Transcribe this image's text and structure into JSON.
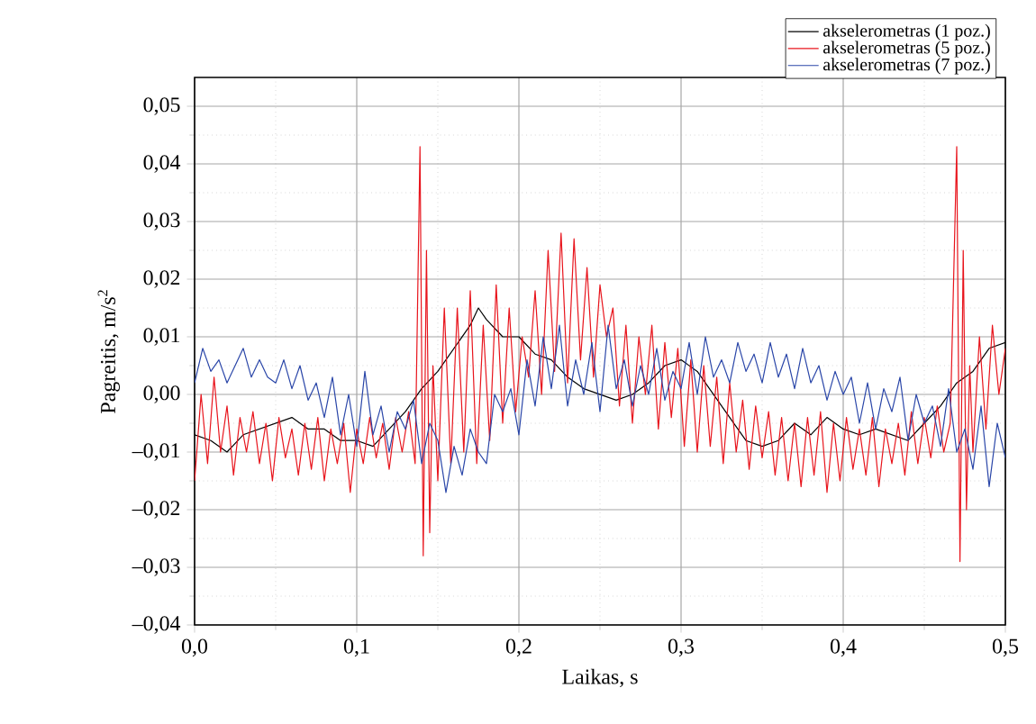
{
  "chart_data": {
    "type": "line",
    "xlabel": "Laikas, s",
    "ylabel": "Pagreitis, m/s$^{2}$",
    "xlim": [
      0,
      0.5
    ],
    "ylim": [
      -0.04,
      0.055
    ],
    "xticks": [
      {
        "value": 0,
        "label": "0,0"
      },
      {
        "value": 0.1,
        "label": "0,1"
      },
      {
        "value": 0.2,
        "label": "0,2"
      },
      {
        "value": 0.3,
        "label": "0,3"
      },
      {
        "value": 0.4,
        "label": "0,4"
      },
      {
        "value": 0.5,
        "label": "0,5"
      }
    ],
    "yticks": [
      {
        "value": -0.04,
        "label": "–0,04"
      },
      {
        "value": -0.03,
        "label": "–0,03"
      },
      {
        "value": -0.02,
        "label": "–0,02"
      },
      {
        "value": -0.01,
        "label": "–0,01"
      },
      {
        "value": 0,
        "label": "0,00"
      },
      {
        "value": 0.01,
        "label": "0,01"
      },
      {
        "value": 0.02,
        "label": "0,02"
      },
      {
        "value": 0.03,
        "label": "0,03"
      },
      {
        "value": 0.04,
        "label": "0,04"
      },
      {
        "value": 0.05,
        "label": "0,05"
      }
    ],
    "grid": true,
    "legend": "top right",
    "marker": "none",
    "line_style": "solid",
    "series": [
      {
        "name": "akselerometras (1 poz.)",
        "color": "#000000",
        "x": [
          0,
          0.01,
          0.02,
          0.03,
          0.04,
          0.05,
          0.06,
          0.07,
          0.08,
          0.09,
          0.1,
          0.11,
          0.12,
          0.13,
          0.14,
          0.15,
          0.16,
          0.17,
          0.175,
          0.18,
          0.19,
          0.2,
          0.21,
          0.22,
          0.23,
          0.24,
          0.25,
          0.26,
          0.27,
          0.28,
          0.29,
          0.3,
          0.31,
          0.32,
          0.33,
          0.34,
          0.35,
          0.36,
          0.37,
          0.38,
          0.39,
          0.4,
          0.41,
          0.42,
          0.43,
          0.44,
          0.45,
          0.46,
          0.47,
          0.48,
          0.49,
          0.5
        ],
        "values": [
          -0.007,
          -0.008,
          -0.01,
          -0.007,
          -0.006,
          -0.005,
          -0.004,
          -0.006,
          -0.006,
          -0.008,
          -0.008,
          -0.009,
          -0.006,
          -0.003,
          0.001,
          0.004,
          0.008,
          0.012,
          0.015,
          0.013,
          0.01,
          0.01,
          0.007,
          0.006,
          0.003,
          0.001,
          0.0,
          -0.001,
          0.0,
          0.002,
          0.005,
          0.006,
          0.004,
          0.0,
          -0.004,
          -0.008,
          -0.009,
          -0.008,
          -0.005,
          -0.007,
          -0.004,
          -0.006,
          -0.007,
          -0.006,
          -0.007,
          -0.008,
          -0.005,
          -0.002,
          0.002,
          0.004,
          0.008,
          0.009
        ]
      },
      {
        "name": "akselerometras (5 poz.)",
        "color": "#e8141c",
        "x": [
          0,
          0.004,
          0.008,
          0.012,
          0.016,
          0.02,
          0.024,
          0.028,
          0.032,
          0.036,
          0.04,
          0.044,
          0.048,
          0.052,
          0.056,
          0.06,
          0.064,
          0.068,
          0.072,
          0.076,
          0.08,
          0.084,
          0.088,
          0.092,
          0.096,
          0.1,
          0.104,
          0.108,
          0.112,
          0.116,
          0.12,
          0.124,
          0.128,
          0.132,
          0.136,
          0.139,
          0.141,
          0.143,
          0.145,
          0.147,
          0.15,
          0.154,
          0.158,
          0.162,
          0.166,
          0.17,
          0.174,
          0.178,
          0.182,
          0.186,
          0.19,
          0.194,
          0.198,
          0.202,
          0.206,
          0.21,
          0.214,
          0.218,
          0.222,
          0.226,
          0.23,
          0.234,
          0.238,
          0.242,
          0.246,
          0.25,
          0.254,
          0.258,
          0.262,
          0.266,
          0.27,
          0.274,
          0.278,
          0.282,
          0.286,
          0.29,
          0.294,
          0.298,
          0.302,
          0.306,
          0.31,
          0.314,
          0.318,
          0.322,
          0.326,
          0.33,
          0.334,
          0.338,
          0.342,
          0.346,
          0.35,
          0.354,
          0.358,
          0.362,
          0.366,
          0.37,
          0.374,
          0.378,
          0.382,
          0.386,
          0.39,
          0.394,
          0.398,
          0.402,
          0.406,
          0.41,
          0.414,
          0.418,
          0.422,
          0.426,
          0.43,
          0.434,
          0.438,
          0.442,
          0.446,
          0.45,
          0.454,
          0.458,
          0.462,
          0.466,
          0.47,
          0.472,
          0.474,
          0.476,
          0.478,
          0.48,
          0.484,
          0.488,
          0.492,
          0.496,
          0.5
        ],
        "values": [
          -0.015,
          0.0,
          -0.012,
          0.003,
          -0.01,
          -0.002,
          -0.014,
          -0.004,
          -0.01,
          -0.003,
          -0.012,
          -0.005,
          -0.015,
          -0.004,
          -0.011,
          -0.006,
          -0.014,
          -0.005,
          -0.013,
          -0.004,
          -0.015,
          -0.006,
          -0.012,
          -0.005,
          -0.017,
          -0.006,
          -0.012,
          -0.004,
          -0.011,
          -0.005,
          -0.013,
          -0.004,
          -0.01,
          -0.003,
          -0.012,
          0.043,
          -0.028,
          0.025,
          -0.024,
          0.005,
          -0.015,
          0.015,
          -0.012,
          0.015,
          -0.01,
          0.018,
          -0.012,
          0.012,
          -0.008,
          0.019,
          -0.005,
          0.015,
          -0.003,
          0.01,
          0.003,
          0.018,
          0.0,
          0.025,
          0.004,
          0.028,
          0.002,
          0.027,
          0.006,
          0.022,
          0.003,
          0.019,
          0.01,
          0.015,
          -0.002,
          0.012,
          -0.005,
          0.01,
          0.0,
          0.012,
          -0.006,
          0.009,
          -0.004,
          0.008,
          -0.009,
          0.006,
          -0.01,
          0.005,
          -0.009,
          0.003,
          -0.012,
          0.002,
          -0.01,
          -0.001,
          -0.013,
          -0.002,
          -0.011,
          -0.003,
          -0.014,
          -0.004,
          -0.015,
          -0.005,
          -0.016,
          -0.004,
          -0.014,
          -0.003,
          -0.017,
          -0.005,
          -0.015,
          -0.004,
          -0.013,
          -0.006,
          -0.014,
          -0.004,
          -0.016,
          -0.006,
          -0.012,
          -0.005,
          -0.014,
          -0.003,
          -0.012,
          -0.004,
          -0.011,
          -0.002,
          -0.01,
          -0.005,
          0.043,
          -0.029,
          0.025,
          -0.02,
          0.005,
          -0.01,
          0.01,
          -0.006,
          0.012,
          0.0,
          0.008
        ]
      },
      {
        "name": "akselerometras (7 poz.)",
        "color": "#2a46a8",
        "x": [
          0,
          0.005,
          0.01,
          0.015,
          0.02,
          0.025,
          0.03,
          0.035,
          0.04,
          0.045,
          0.05,
          0.055,
          0.06,
          0.065,
          0.07,
          0.075,
          0.08,
          0.085,
          0.09,
          0.095,
          0.1,
          0.105,
          0.11,
          0.115,
          0.12,
          0.125,
          0.13,
          0.135,
          0.14,
          0.145,
          0.15,
          0.155,
          0.16,
          0.165,
          0.17,
          0.175,
          0.18,
          0.185,
          0.19,
          0.195,
          0.2,
          0.205,
          0.21,
          0.215,
          0.22,
          0.225,
          0.23,
          0.235,
          0.24,
          0.245,
          0.25,
          0.255,
          0.26,
          0.265,
          0.27,
          0.275,
          0.28,
          0.285,
          0.29,
          0.295,
          0.3,
          0.305,
          0.31,
          0.315,
          0.32,
          0.325,
          0.33,
          0.335,
          0.34,
          0.345,
          0.35,
          0.355,
          0.36,
          0.365,
          0.37,
          0.375,
          0.38,
          0.385,
          0.39,
          0.395,
          0.4,
          0.405,
          0.41,
          0.415,
          0.42,
          0.425,
          0.43,
          0.435,
          0.44,
          0.445,
          0.45,
          0.455,
          0.46,
          0.465,
          0.47,
          0.475,
          0.48,
          0.485,
          0.49,
          0.495,
          0.5
        ],
        "values": [
          0.002,
          0.008,
          0.004,
          0.006,
          0.002,
          0.005,
          0.008,
          0.003,
          0.006,
          0.003,
          0.002,
          0.006,
          0.001,
          0.005,
          -0.001,
          0.002,
          -0.004,
          0.003,
          -0.007,
          0.0,
          -0.009,
          0.004,
          -0.007,
          -0.002,
          -0.01,
          -0.003,
          -0.006,
          -0.001,
          -0.012,
          -0.005,
          -0.008,
          -0.017,
          -0.009,
          -0.014,
          -0.006,
          -0.01,
          -0.012,
          0.0,
          -0.003,
          0.001,
          -0.007,
          0.006,
          -0.002,
          0.01,
          0.001,
          0.012,
          -0.002,
          0.006,
          0.0,
          0.009,
          -0.003,
          0.012,
          0.001,
          0.006,
          -0.002,
          0.005,
          0.0,
          0.008,
          -0.001,
          0.004,
          0.001,
          0.009,
          0.0,
          0.01,
          0.003,
          0.006,
          0.002,
          0.009,
          0.004,
          0.007,
          0.002,
          0.009,
          0.003,
          0.007,
          0.001,
          0.008,
          0.002,
          0.005,
          -0.001,
          0.004,
          0.0,
          0.003,
          -0.005,
          0.002,
          -0.006,
          0.001,
          -0.003,
          0.003,
          -0.008,
          0.0,
          -0.005,
          -0.002,
          -0.009,
          0.001,
          -0.01,
          -0.006,
          -0.013,
          -0.002,
          -0.016,
          -0.005,
          -0.011
        ]
      }
    ]
  }
}
